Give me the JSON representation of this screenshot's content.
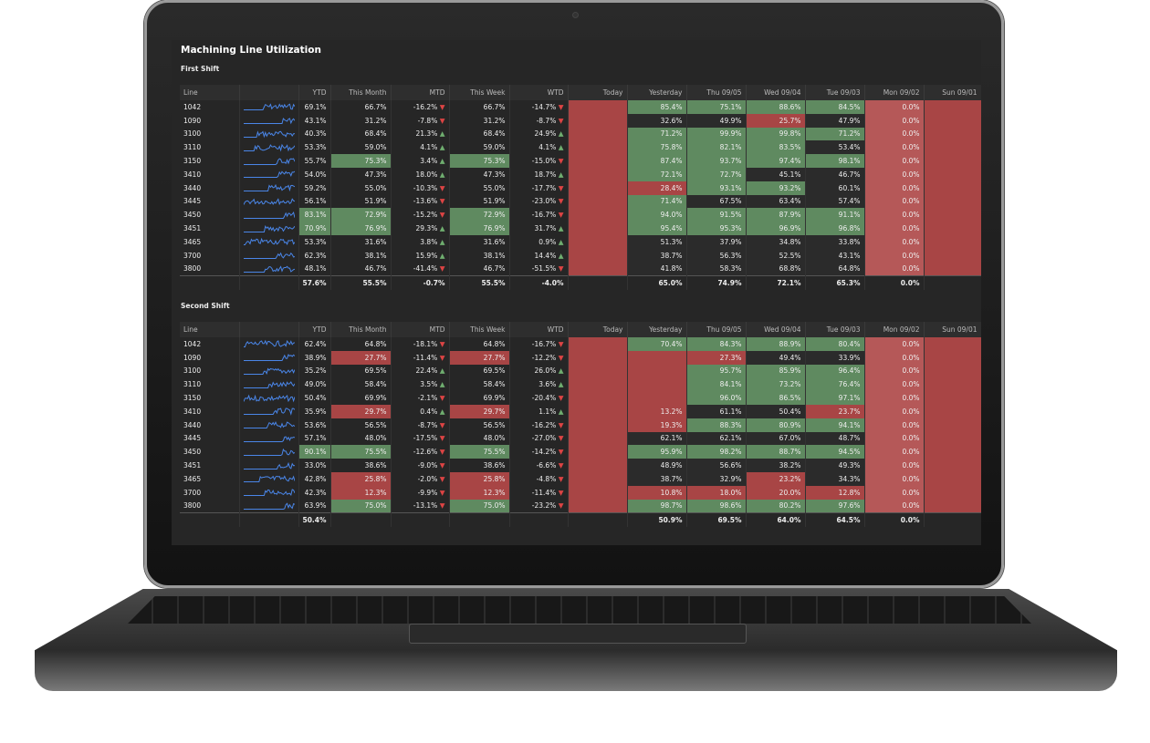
{
  "title": "Machining Line Utilization",
  "columns": [
    "Line",
    "",
    "YTD",
    "This Month",
    "MTD",
    "This Week",
    "WTD",
    "Today",
    "Yesterday",
    "Thu 09/05",
    "Wed 09/04",
    "Tue 09/03",
    "Mon 09/02",
    "Sun 09/01"
  ],
  "colors": {
    "good": "#5f8a60",
    "bad": "#a84545",
    "trend_up": "#6fae6f",
    "trend_down": "#d44444",
    "sparkline": "#4a86e8"
  },
  "shifts": [
    {
      "name": "First Shift",
      "rows": [
        {
          "line": "1042",
          "ytd": "69.1%",
          "month": "66.7%",
          "mtd": "-16.2%",
          "week": "66.7%",
          "wtd": "-14.7%",
          "yest": "85.4%",
          "thu": "75.1%",
          "wed": "88.6%",
          "tue": "84.5%",
          "mon": "0.0%",
          "status": "nnn|gggg"
        },
        {
          "line": "1090",
          "ytd": "43.1%",
          "month": "31.2%",
          "mtd": "-7.8%",
          "week": "31.2%",
          "wtd": "-8.7%",
          "yest": "32.6%",
          "thu": "49.9%",
          "wed": "25.7%",
          "tue": "47.9%",
          "mon": "0.0%",
          "status": "nnn|nnrn"
        },
        {
          "line": "3100",
          "ytd": "40.3%",
          "month": "68.4%",
          "mtd": "21.3%",
          "week": "68.4%",
          "wtd": "24.9%",
          "yest": "71.2%",
          "thu": "99.9%",
          "wed": "99.8%",
          "tue": "71.2%",
          "mon": "0.0%",
          "status": "nnn|gggg"
        },
        {
          "line": "3110",
          "ytd": "53.3%",
          "month": "59.0%",
          "mtd": "4.1%",
          "week": "59.0%",
          "wtd": "4.1%",
          "yest": "75.8%",
          "thu": "82.1%",
          "wed": "83.5%",
          "tue": "53.4%",
          "mon": "0.0%",
          "status": "nnn|gggn"
        },
        {
          "line": "3150",
          "ytd": "55.7%",
          "month": "75.3%",
          "mtd": "3.4%",
          "week": "75.3%",
          "wtd": "-15.0%",
          "yest": "87.4%",
          "thu": "93.7%",
          "wed": "97.4%",
          "tue": "98.1%",
          "mon": "0.0%",
          "status": "ngg|gggg"
        },
        {
          "line": "3410",
          "ytd": "54.0%",
          "month": "47.3%",
          "mtd": "18.0%",
          "week": "47.3%",
          "wtd": "18.7%",
          "yest": "72.1%",
          "thu": "72.7%",
          "wed": "45.1%",
          "tue": "46.7%",
          "mon": "0.0%",
          "status": "nnn|ggnn"
        },
        {
          "line": "3440",
          "ytd": "59.2%",
          "month": "55.0%",
          "mtd": "-10.3%",
          "week": "55.0%",
          "wtd": "-17.7%",
          "yest": "28.4%",
          "thu": "93.1%",
          "wed": "93.2%",
          "tue": "60.1%",
          "mon": "0.0%",
          "status": "nnn|rggn"
        },
        {
          "line": "3445",
          "ytd": "56.1%",
          "month": "51.9%",
          "mtd": "-13.6%",
          "week": "51.9%",
          "wtd": "-23.0%",
          "yest": "71.4%",
          "thu": "67.5%",
          "wed": "63.4%",
          "tue": "57.4%",
          "mon": "0.0%",
          "status": "nnn|gnnn"
        },
        {
          "line": "3450",
          "ytd": "83.1%",
          "month": "72.9%",
          "mtd": "-15.2%",
          "week": "72.9%",
          "wtd": "-16.7%",
          "yest": "94.0%",
          "thu": "91.5%",
          "wed": "87.9%",
          "tue": "91.1%",
          "mon": "0.0%",
          "status": "ggg|gggg"
        },
        {
          "line": "3451",
          "ytd": "70.9%",
          "month": "76.9%",
          "mtd": "29.3%",
          "week": "76.9%",
          "wtd": "31.7%",
          "yest": "95.4%",
          "thu": "95.3%",
          "wed": "96.9%",
          "tue": "96.8%",
          "mon": "0.0%",
          "status": "ggg|gggg"
        },
        {
          "line": "3465",
          "ytd": "53.3%",
          "month": "31.6%",
          "mtd": "3.8%",
          "week": "31.6%",
          "wtd": "0.9%",
          "yest": "51.3%",
          "thu": "37.9%",
          "wed": "34.8%",
          "tue": "33.8%",
          "mon": "0.0%",
          "status": "nnn|nnnn"
        },
        {
          "line": "3700",
          "ytd": "62.3%",
          "month": "38.1%",
          "mtd": "15.9%",
          "week": "38.1%",
          "wtd": "14.4%",
          "yest": "38.7%",
          "thu": "56.3%",
          "wed": "52.5%",
          "tue": "43.1%",
          "mon": "0.0%",
          "status": "nnn|nnnn"
        },
        {
          "line": "3800",
          "ytd": "48.1%",
          "month": "46.7%",
          "mtd": "-41.4%",
          "week": "46.7%",
          "wtd": "-51.5%",
          "yest": "41.8%",
          "thu": "58.3%",
          "wed": "68.8%",
          "tue": "64.8%",
          "mon": "0.0%",
          "status": "nnn|nnnn"
        }
      ],
      "total": {
        "ytd": "57.6%",
        "month": "55.5%",
        "mtd": "-0.7%",
        "week": "55.5%",
        "wtd": "-4.0%",
        "yest": "65.0%",
        "thu": "74.9%",
        "wed": "72.1%",
        "tue": "65.3%",
        "mon": "0.0%"
      }
    },
    {
      "name": "Second Shift",
      "rows": [
        {
          "line": "1042",
          "ytd": "62.4%",
          "month": "64.8%",
          "mtd": "-18.1%",
          "week": "64.8%",
          "wtd": "-16.7%",
          "yest": "70.4%",
          "thu": "84.3%",
          "wed": "88.9%",
          "tue": "80.4%",
          "mon": "0.0%",
          "status": "nnn|gggg"
        },
        {
          "line": "1090",
          "ytd": "38.9%",
          "month": "27.7%",
          "mtd": "-11.4%",
          "week": "27.7%",
          "wtd": "-12.2%",
          "yest": "",
          "thu": "27.3%",
          "wed": "49.4%",
          "tue": "33.9%",
          "mon": "0.0%",
          "status": "nrr|rrnn"
        },
        {
          "line": "3100",
          "ytd": "35.2%",
          "month": "69.5%",
          "mtd": "22.4%",
          "week": "69.5%",
          "wtd": "26.0%",
          "yest": "",
          "thu": "95.7%",
          "wed": "85.9%",
          "tue": "96.4%",
          "mon": "0.0%",
          "status": "nnn|rggg"
        },
        {
          "line": "3110",
          "ytd": "49.0%",
          "month": "58.4%",
          "mtd": "3.5%",
          "week": "58.4%",
          "wtd": "3.6%",
          "yest": "",
          "thu": "84.1%",
          "wed": "73.2%",
          "tue": "76.4%",
          "mon": "0.0%",
          "status": "nnn|rggg"
        },
        {
          "line": "3150",
          "ytd": "50.4%",
          "month": "69.9%",
          "mtd": "-2.1%",
          "week": "69.9%",
          "wtd": "-20.4%",
          "yest": "",
          "thu": "96.0%",
          "wed": "86.5%",
          "tue": "97.1%",
          "mon": "0.0%",
          "status": "nnn|rggg"
        },
        {
          "line": "3410",
          "ytd": "35.9%",
          "month": "29.7%",
          "mtd": "0.4%",
          "week": "29.7%",
          "wtd": "1.1%",
          "yest": "13.2%",
          "thu": "61.1%",
          "wed": "50.4%",
          "tue": "23.7%",
          "mon": "0.0%",
          "status": "nrr|rnnr"
        },
        {
          "line": "3440",
          "ytd": "53.6%",
          "month": "56.5%",
          "mtd": "-8.7%",
          "week": "56.5%",
          "wtd": "-16.2%",
          "yest": "19.3%",
          "thu": "88.3%",
          "wed": "80.9%",
          "tue": "94.1%",
          "mon": "0.0%",
          "status": "nnn|rggg"
        },
        {
          "line": "3445",
          "ytd": "57.1%",
          "month": "48.0%",
          "mtd": "-17.5%",
          "week": "48.0%",
          "wtd": "-27.0%",
          "yest": "62.1%",
          "thu": "62.1%",
          "wed": "67.0%",
          "tue": "48.7%",
          "mon": "0.0%",
          "status": "nnn|nnnn"
        },
        {
          "line": "3450",
          "ytd": "90.1%",
          "month": "75.5%",
          "mtd": "-12.6%",
          "week": "75.5%",
          "wtd": "-14.2%",
          "yest": "95.9%",
          "thu": "98.2%",
          "wed": "88.7%",
          "tue": "94.5%",
          "mon": "0.0%",
          "status": "ggg|gggg"
        },
        {
          "line": "3451",
          "ytd": "33.0%",
          "month": "38.6%",
          "mtd": "-9.0%",
          "week": "38.6%",
          "wtd": "-6.6%",
          "yest": "48.9%",
          "thu": "56.6%",
          "wed": "38.2%",
          "tue": "49.3%",
          "mon": "0.0%",
          "status": "nnn|nnnn"
        },
        {
          "line": "3465",
          "ytd": "42.8%",
          "month": "25.8%",
          "mtd": "-2.0%",
          "week": "25.8%",
          "wtd": "-4.8%",
          "yest": "38.7%",
          "thu": "32.9%",
          "wed": "23.2%",
          "tue": "34.3%",
          "mon": "0.0%",
          "status": "nrr|nnrn"
        },
        {
          "line": "3700",
          "ytd": "42.3%",
          "month": "12.3%",
          "mtd": "-9.9%",
          "week": "12.3%",
          "wtd": "-11.4%",
          "yest": "10.8%",
          "thu": "18.0%",
          "wed": "20.0%",
          "tue": "12.8%",
          "mon": "0.0%",
          "status": "nrr|rrrr"
        },
        {
          "line": "3800",
          "ytd": "63.9%",
          "month": "75.0%",
          "mtd": "-13.1%",
          "week": "75.0%",
          "wtd": "-23.2%",
          "yest": "98.7%",
          "thu": "98.6%",
          "wed": "80.2%",
          "tue": "97.6%",
          "mon": "0.0%",
          "status": "ngg|gggg"
        }
      ],
      "total": {
        "ytd": "50.4%",
        "month": "",
        "mtd": "",
        "week": "",
        "wtd": "",
        "yest": "50.9%",
        "thu": "69.5%",
        "wed": "64.0%",
        "tue": "64.5%",
        "mon": "0.0%"
      }
    }
  ]
}
